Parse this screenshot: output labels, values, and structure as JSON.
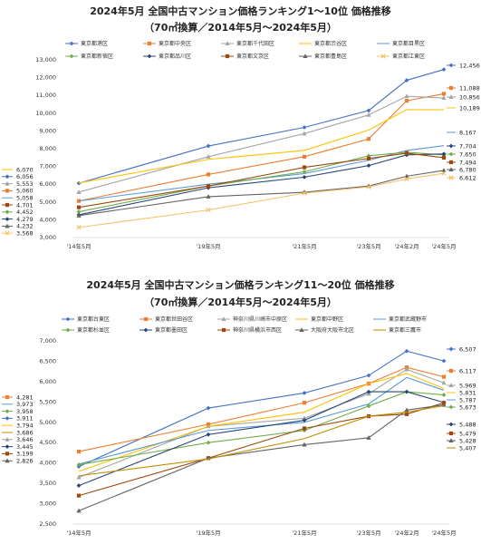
{
  "chart_data": [
    {
      "type": "line",
      "title": "2024年5月 全国中古マンション価格ランキング1～10位 価格推移",
      "subtitle": "（70㎡換算／2014年5月～2024年5月）",
      "categories": [
        "'14年5月",
        "'19年5月",
        "'21年5月",
        "'23年5月",
        "'24年2月",
        "'24年5月"
      ],
      "ylim": [
        3000,
        13000
      ],
      "yticks": [
        "3,000",
        "4,000",
        "5,000",
        "6,000",
        "7,000",
        "8,000",
        "9,000",
        "10,000",
        "11,000",
        "12,000",
        "13,000"
      ],
      "series": [
        {
          "name": "東京都港区",
          "color": "#4472c4",
          "marker": "diamond",
          "start_label": "6,056",
          "end_label": "12,456",
          "values": [
            6056,
            8150,
            9200,
            10150,
            11850,
            12456
          ]
        },
        {
          "name": "東京都中央区",
          "color": "#ed7d31",
          "marker": "square",
          "start_label": "5,060",
          "end_label": "11,088",
          "values": [
            5060,
            6550,
            7550,
            8550,
            10700,
            11088
          ]
        },
        {
          "name": "東京都千代田区",
          "color": "#a5a5a5",
          "marker": "triangle",
          "start_label": "5,553",
          "end_label": "10,856",
          "values": [
            5553,
            7550,
            8850,
            9900,
            10950,
            10856
          ]
        },
        {
          "name": "東京都渋谷区",
          "color": "#ffc000",
          "marker": "none",
          "start_label": "6,070",
          "end_label": "10,189",
          "values": [
            6070,
            7400,
            7900,
            9050,
            10200,
            10189
          ]
        },
        {
          "name": "東京都目黒区",
          "color": "#5b9bd5",
          "marker": "none",
          "start_label": "5,058",
          "end_label": "8,167",
          "values": [
            5058,
            6000,
            6600,
            7350,
            7900,
            8167
          ]
        },
        {
          "name": "東京都新宿区",
          "color": "#70ad47",
          "marker": "diamond",
          "start_label": "4,452",
          "end_label": "7,650",
          "values": [
            4452,
            5900,
            6700,
            7600,
            7800,
            7650
          ]
        },
        {
          "name": "東京都品川区",
          "color": "#264478",
          "marker": "diamond",
          "start_label": "4,279",
          "end_label": "7,704",
          "values": [
            4279,
            5800,
            6400,
            7050,
            7650,
            7704
          ]
        },
        {
          "name": "東京都文京区",
          "color": "#9e480e",
          "marker": "square",
          "start_label": "4,701",
          "end_label": "7,494",
          "values": [
            4701,
            5900,
            6950,
            7450,
            7750,
            7494
          ]
        },
        {
          "name": "東京都豊島区",
          "color": "#636363",
          "marker": "triangle",
          "start_label": "4,232",
          "end_label": "6,780",
          "values": [
            4232,
            5300,
            5550,
            5900,
            6450,
            6780
          ]
        },
        {
          "name": "東京都江東区",
          "color": "#f5c26b",
          "marker": "x",
          "start_label": "3,568",
          "end_label": "6,612",
          "values": [
            3568,
            4550,
            5500,
            5850,
            6300,
            6612
          ]
        }
      ]
    },
    {
      "type": "line",
      "title": "2024年5月 全国中古マンション価格ランキング11～20位 価格推移",
      "subtitle": "（70㎡換算／2014年5月～2024年5月）",
      "categories": [
        "'14年5月",
        "'19年5月",
        "'21年5月",
        "'23年5月",
        "'24年2月",
        "'24年5月"
      ],
      "ylim": [
        2500,
        7000
      ],
      "yticks": [
        "2,500",
        "3,000",
        "3,500",
        "4,000",
        "4,500",
        "5,000",
        "5,500",
        "6,000",
        "6,500",
        "7,000"
      ],
      "series": [
        {
          "name": "東京都台東区",
          "color": "#4472c4",
          "marker": "diamond",
          "start_label": "3,911",
          "end_label": "6,507",
          "values": [
            3911,
            5350,
            5720,
            6150,
            6750,
            6507
          ]
        },
        {
          "name": "東京都世田谷区",
          "color": "#ed7d31",
          "marker": "square",
          "start_label": "4,281",
          "end_label": "6,117",
          "values": [
            4281,
            4950,
            5480,
            5950,
            6350,
            6117
          ]
        },
        {
          "name": "神奈川県川崎市中原区",
          "color": "#a5a5a5",
          "marker": "triangle",
          "start_label": "3,646",
          "end_label": "5,969",
          "values": [
            3646,
            4900,
            5100,
            5700,
            6300,
            5969
          ]
        },
        {
          "name": "東京都中野区",
          "color": "#ffc000",
          "marker": "none",
          "start_label": "3,794",
          "end_label": "5,831",
          "values": [
            3794,
            4900,
            5250,
            5950,
            6200,
            5831
          ]
        },
        {
          "name": "東京都武蔵野市",
          "color": "#5b9bd5",
          "marker": "none",
          "start_label": "3,973",
          "end_label": "5,787",
          "values": [
            3973,
            4800,
            5000,
            5450,
            6100,
            5787
          ]
        },
        {
          "name": "東京都杉並区",
          "color": "#70ad47",
          "marker": "diamond",
          "start_label": "3,958",
          "end_label": "5,673",
          "values": [
            3958,
            4500,
            4800,
            5400,
            5750,
            5673
          ]
        },
        {
          "name": "東京都墨田区",
          "color": "#264478",
          "marker": "diamond",
          "start_label": "3,445",
          "end_label": "5,488",
          "values": [
            3445,
            4700,
            5050,
            5750,
            5750,
            5488
          ]
        },
        {
          "name": "神奈川県横浜市西区",
          "color": "#9e480e",
          "marker": "square",
          "start_label": "3,199",
          "end_label": "5,479",
          "values": [
            3199,
            4120,
            4850,
            5150,
            5200,
            5479
          ]
        },
        {
          "name": "大阪府大阪市北区",
          "color": "#636363",
          "marker": "triangle",
          "start_label": "2,826",
          "end_label": "5,428",
          "values": [
            2826,
            4120,
            4450,
            4620,
            5300,
            5428
          ]
        },
        {
          "name": "東京都三鷹市",
          "color": "#bf8f00",
          "marker": "none",
          "start_label": "3,686",
          "end_label": "5,407",
          "values": [
            3686,
            4100,
            4600,
            5150,
            5250,
            5407
          ]
        }
      ]
    }
  ]
}
